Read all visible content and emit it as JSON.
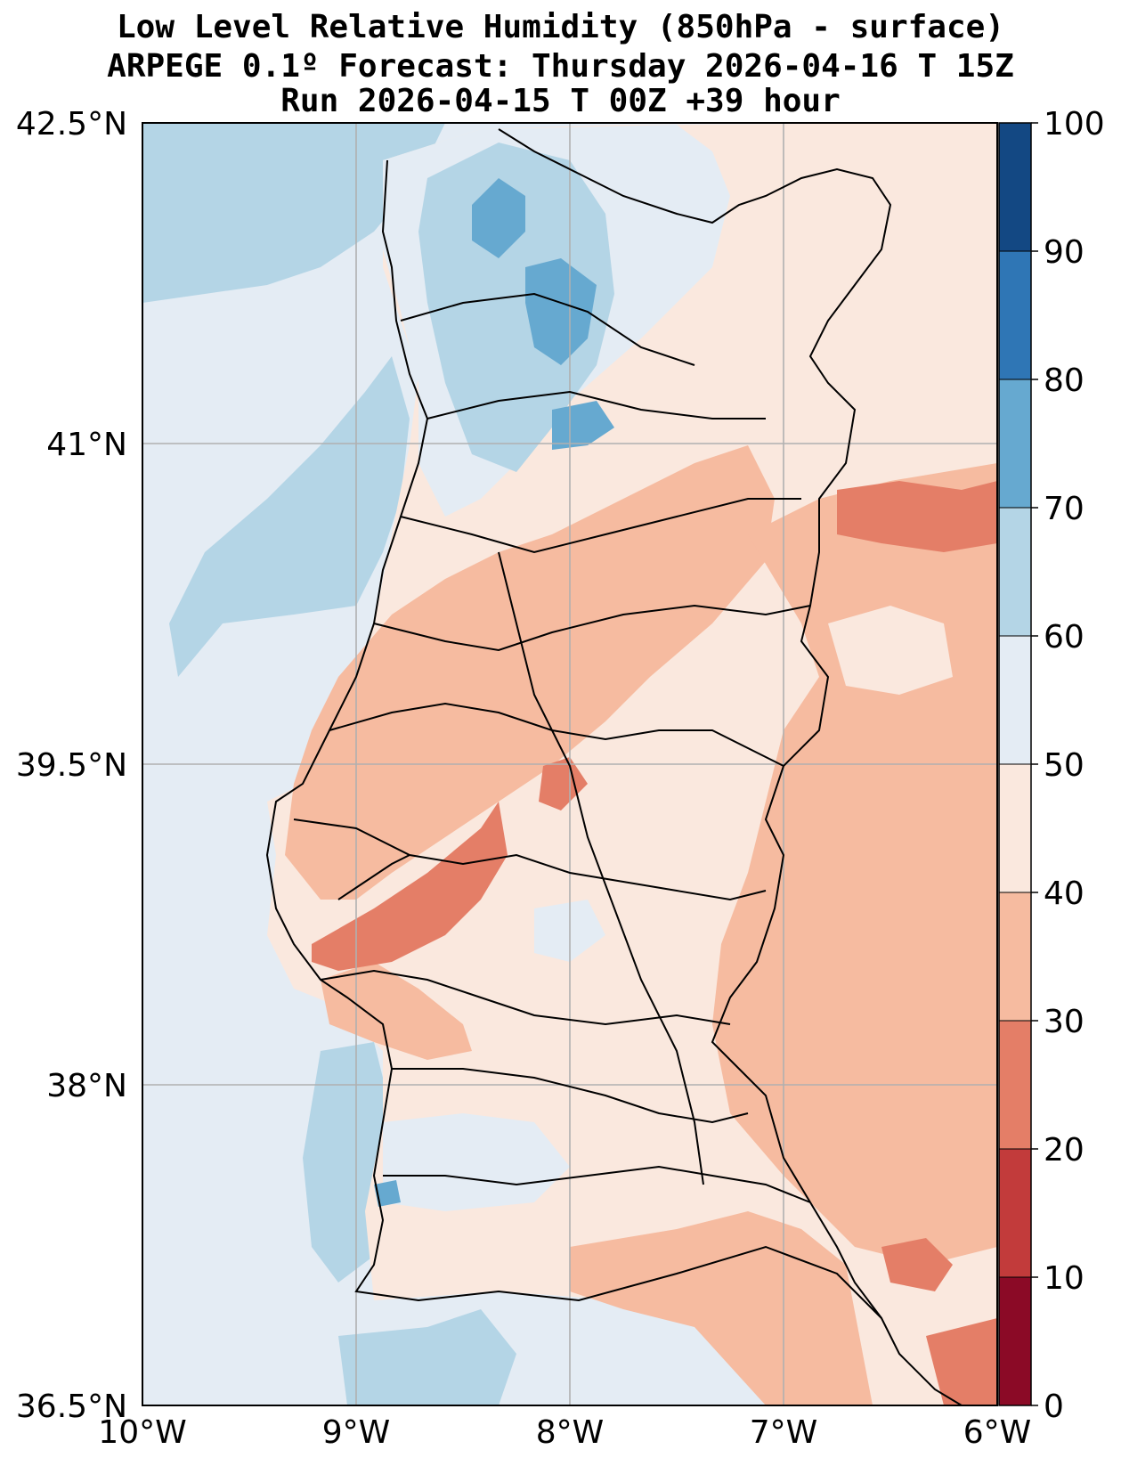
{
  "title": {
    "line1": "Low Level Relative Humidity (850hPa - surface)",
    "line2": "ARPEGE 0.1º Forecast: Thursday 2026-04-16 T 15Z",
    "line3": "Run 2026-04-15 T 00Z +39 hour"
  },
  "map": {
    "region": "Portugal",
    "lat_range": [
      36.5,
      42.5
    ],
    "lon_range": [
      -10,
      -6
    ],
    "lat_ticks": [
      "42.5°N",
      "41°N",
      "39.5°N",
      "38°N",
      "36.5°N"
    ],
    "lat_values": [
      42.5,
      41,
      39.5,
      38,
      36.5
    ],
    "lon_ticks": [
      "10°W",
      "9°W",
      "8°W",
      "7°W",
      "6°W"
    ],
    "lon_values": [
      -10,
      -9,
      -8,
      -7,
      -6
    ],
    "gridlines": true
  },
  "colorbar": {
    "labels": [
      "0",
      "10",
      "20",
      "30",
      "40",
      "50",
      "60",
      "70",
      "80",
      "90",
      "100"
    ],
    "levels": [
      0,
      10,
      20,
      30,
      40,
      50,
      60,
      70,
      80,
      90,
      100
    ],
    "colors": [
      "#8b0a26",
      "#c23b3b",
      "#e47e67",
      "#f6bba0",
      "#fae8de",
      "#e4ecf4",
      "#b4d5e6",
      "#66a9d0",
      "#2f76b5",
      "#134883"
    ]
  }
}
